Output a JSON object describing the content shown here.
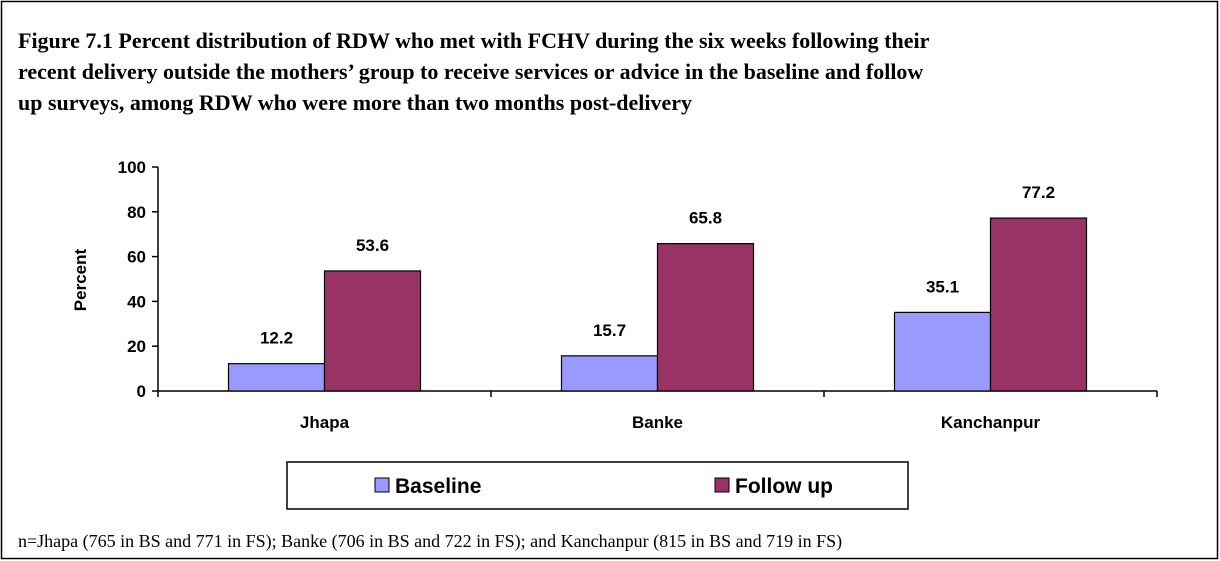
{
  "chart_data": {
    "type": "bar",
    "title_lines": [
      "Figure 7.1 Percent distribution of RDW who met with FCHV during the six weeks following their",
      "recent delivery outside the mothers’ group to receive services or advice in the baseline and follow",
      "up surveys, among RDW who were more than two months post-delivery"
    ],
    "y_label": "Percent",
    "categories": [
      "Jhapa",
      "Banke",
      "Kanchanpur"
    ],
    "series": [
      {
        "name": "Baseline",
        "color": "#9999ff",
        "values": [
          12.2,
          15.7,
          35.1
        ]
      },
      {
        "name": "Follow up",
        "color": "#993366",
        "values": [
          53.6,
          65.8,
          77.2
        ]
      }
    ],
    "ylim": [
      0,
      100
    ],
    "yticks": [
      0,
      20,
      40,
      60,
      80,
      100
    ],
    "legend": "bottom",
    "footnote": "n=Jhapa (765 in BS and 771 in FS); Banke (706 in BS and 722 in FS); and Kanchanpur (815 in BS and 719 in FS)"
  }
}
